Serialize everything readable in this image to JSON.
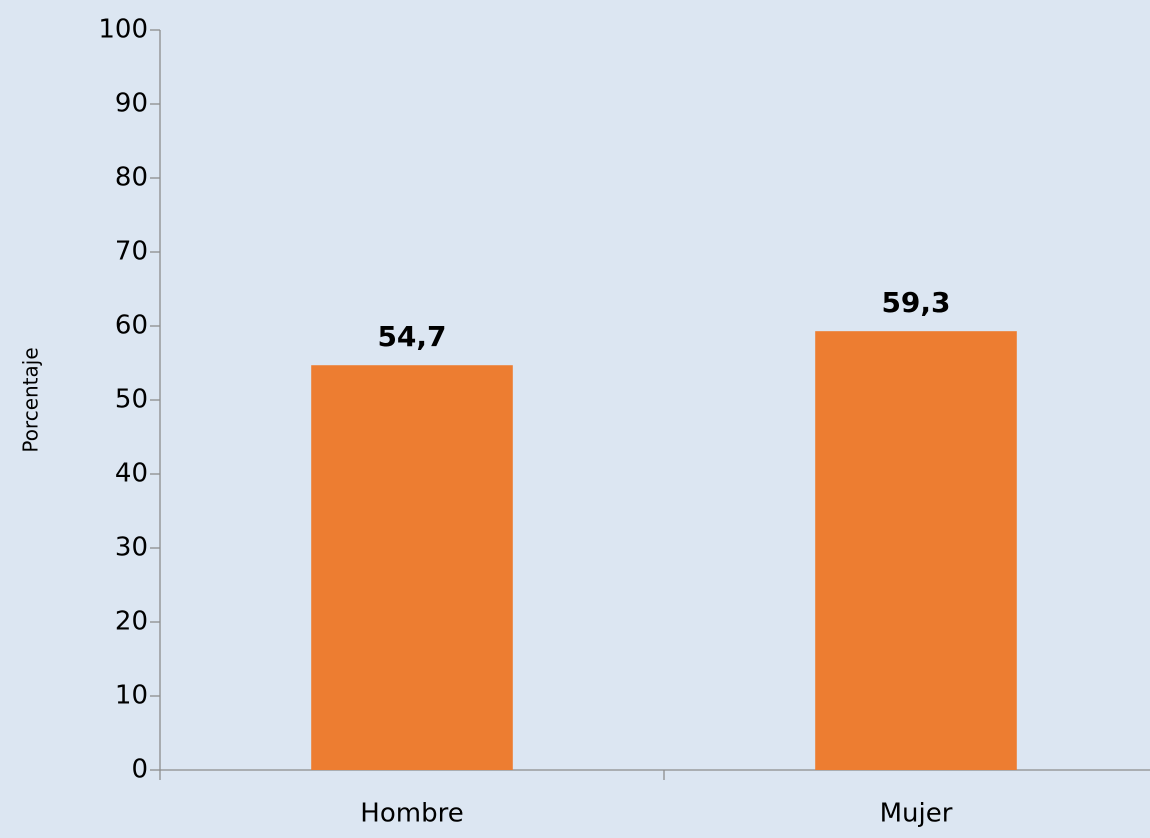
{
  "chart_data": {
    "type": "bar",
    "y_label": "Porcentaje",
    "categories": [
      "Hombre",
      "Mujer"
    ],
    "values": [
      54.7,
      59.3
    ],
    "value_labels": [
      "54,7",
      "59,3"
    ],
    "color": "#ED7D31",
    "ylim": [
      0,
      100
    ],
    "yticks": [
      0,
      10,
      20,
      30,
      40,
      50,
      60,
      70,
      80,
      90,
      100
    ],
    "grid": false
  }
}
